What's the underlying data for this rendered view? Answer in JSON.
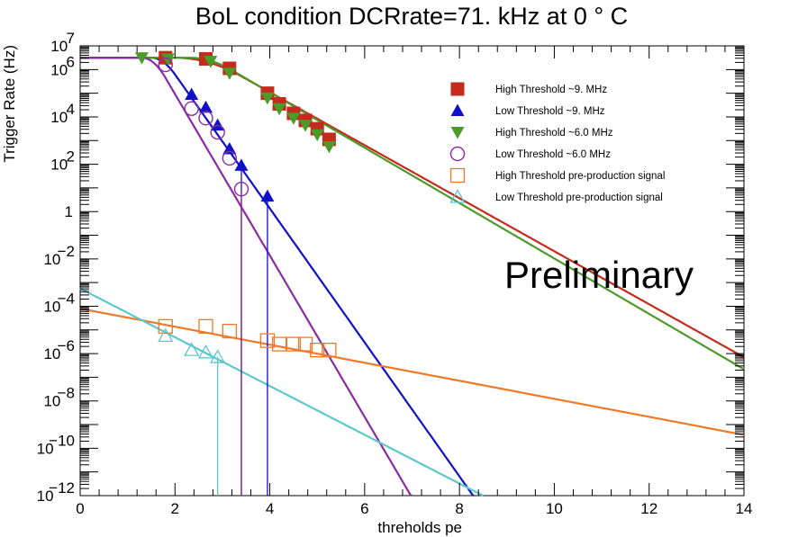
{
  "chart_data": {
    "type": "scatter",
    "title": "BoL condition DCRrate=71. kHz at 0 ° C",
    "xlabel": "threholds pe",
    "ylabel": "Trigger Rate (Hz)",
    "xlim": [
      0,
      14
    ],
    "ylim_log10": [
      -12,
      7
    ],
    "yscale": "log",
    "x_ticks": [
      0,
      2,
      4,
      6,
      8,
      10,
      12,
      14
    ],
    "y_ticks": [
      {
        "exp": 7,
        "label": "10",
        "sup": "7"
      },
      {
        "exp": 6,
        "label": "10",
        "sup": "6"
      },
      {
        "exp": 4,
        "label": "10",
        "sup": "4"
      },
      {
        "exp": 2,
        "label": "10",
        "sup": "2"
      },
      {
        "exp": 0,
        "label": "1",
        "sup": ""
      },
      {
        "exp": -2,
        "label": "10",
        "sup": "−2"
      },
      {
        "exp": -4,
        "label": "10",
        "sup": "−4"
      },
      {
        "exp": -6,
        "label": "10",
        "sup": "−6"
      },
      {
        "exp": -8,
        "label": "10",
        "sup": "−8"
      },
      {
        "exp": -10,
        "label": "10",
        "sup": "−10"
      },
      {
        "exp": -12,
        "label": "10",
        "sup": "−12"
      }
    ],
    "annotation": "Preliminary",
    "legend_position": "top-right",
    "series": [
      {
        "name": "High Threshold ~9. MHz",
        "color": "#c42b1c",
        "marker": "square-filled",
        "points": [
          {
            "x": 1.8,
            "y": 6.5
          },
          {
            "x": 2.65,
            "y": 6.45
          },
          {
            "x": 3.15,
            "y": 6.05
          },
          {
            "x": 3.95,
            "y": 5.0
          },
          {
            "x": 4.2,
            "y": 4.55
          },
          {
            "x": 4.5,
            "y": 4.15
          },
          {
            "x": 4.75,
            "y": 3.85
          },
          {
            "x": 5.0,
            "y": 3.5
          },
          {
            "x": 5.25,
            "y": 3.05
          }
        ],
        "fit": {
          "plateau": 6.5,
          "x0": 2.0,
          "x1": 3.4,
          "slope": -1.12
        }
      },
      {
        "name": "Low Threshold  ~9. MHz",
        "color": "#1010c8",
        "marker": "triangle-up-filled",
        "points": [
          {
            "x": 2.35,
            "y": 4.95
          },
          {
            "x": 2.65,
            "y": 4.4
          },
          {
            "x": 2.9,
            "y": 3.65
          },
          {
            "x": 3.15,
            "y": 2.65
          },
          {
            "x": 3.4,
            "y": 1.95
          },
          {
            "x": 3.95,
            "y": 0.65
          }
        ],
        "error_bars": [
          {
            "x": 3.4,
            "y_low": -12
          },
          {
            "x": 3.95,
            "y_low": -12
          }
        ],
        "fit": {
          "plateau": 6.5,
          "x0": 1.5,
          "x1": 2.0,
          "slope": -2.83
        }
      },
      {
        "name": "High Threshold ~6.0 MHz",
        "color": "#4c9a2a",
        "marker": "triangle-down-filled",
        "points": [
          {
            "x": 1.3,
            "y": 6.5
          },
          {
            "x": 1.85,
            "y": 6.45
          },
          {
            "x": 2.75,
            "y": 6.35
          },
          {
            "x": 3.15,
            "y": 5.85
          },
          {
            "x": 3.95,
            "y": 4.8
          },
          {
            "x": 4.2,
            "y": 4.35
          },
          {
            "x": 4.5,
            "y": 3.95
          },
          {
            "x": 4.75,
            "y": 3.65
          },
          {
            "x": 5.0,
            "y": 3.25
          },
          {
            "x": 5.25,
            "y": 2.75
          }
        ],
        "fit": {
          "plateau": 6.5,
          "x0": 2.3,
          "x1": 3.2,
          "slope": -1.17
        }
      },
      {
        "name": "Low Threshold  ~6.0 MHz",
        "color": "#8a2ca0",
        "marker": "circle-open",
        "points": [
          {
            "x": 1.8,
            "y": 6.2
          },
          {
            "x": 2.35,
            "y": 4.35
          },
          {
            "x": 2.65,
            "y": 3.95
          },
          {
            "x": 2.9,
            "y": 3.35
          },
          {
            "x": 3.15,
            "y": 2.25
          },
          {
            "x": 3.4,
            "y": 0.95
          }
        ],
        "error_bars": [
          {
            "x": 3.4,
            "y_low": -12
          }
        ],
        "fit": {
          "plateau": 6.5,
          "x0": 1.3,
          "x1": 1.8,
          "slope": -3.41
        }
      },
      {
        "name": "High Threshold pre-production signal",
        "color": "#f07828",
        "marker": "square-open",
        "points": [
          {
            "x": 1.8,
            "y": -4.85
          },
          {
            "x": 2.65,
            "y": -4.85
          },
          {
            "x": 3.15,
            "y": -5.05
          },
          {
            "x": 3.95,
            "y": -5.45
          },
          {
            "x": 4.2,
            "y": -5.6
          },
          {
            "x": 4.5,
            "y": -5.6
          },
          {
            "x": 4.75,
            "y": -5.6
          },
          {
            "x": 5.0,
            "y": -5.85
          },
          {
            "x": 5.25,
            "y": -5.85
          }
        ],
        "fit": {
          "plateau": -4.1,
          "x0": 0,
          "x1": 0,
          "slope": -0.381
        }
      },
      {
        "name": "Low Threshold pre-production signal",
        "color": "#5cc8cc",
        "marker": "triangle-up-open",
        "points": [
          {
            "x": 1.8,
            "y": -5.25
          },
          {
            "x": 2.35,
            "y": -5.85
          },
          {
            "x": 2.65,
            "y": -5.95
          },
          {
            "x": 2.9,
            "y": -6.15
          }
        ],
        "error_bars": [
          {
            "x": 2.9,
            "y_low": -12
          }
        ],
        "fit": {
          "plateau": -3.25,
          "x0": 0,
          "x1": 0,
          "slope": -1.03
        }
      }
    ]
  }
}
